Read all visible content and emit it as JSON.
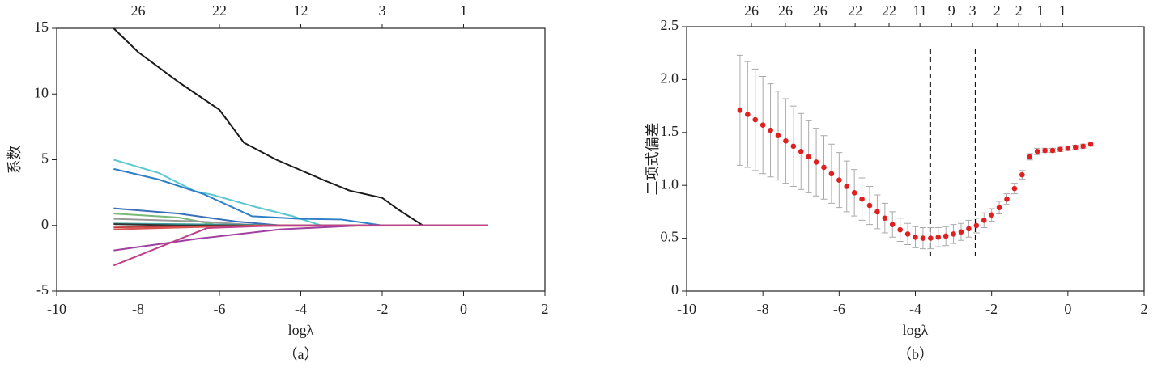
{
  "chart_data": [
    {
      "type": "line",
      "xlabel": "logλ",
      "ylabel": "系数",
      "caption": "（a）",
      "xlim": [
        -10,
        2
      ],
      "ylim": [
        -5,
        15
      ],
      "xticks": [
        -10,
        -8,
        -6,
        -4,
        -2,
        0,
        2
      ],
      "yticks": [
        -5,
        0,
        5,
        10,
        15
      ],
      "x2ticks": [
        {
          "value": -8,
          "label": "26"
        },
        {
          "value": -6,
          "label": "22"
        },
        {
          "value": -4,
          "label": "12"
        },
        {
          "value": -2,
          "label": "3"
        },
        {
          "value": 0,
          "label": "1"
        }
      ],
      "series": [
        {
          "color": "#1a1a1a",
          "x": [
            -8.6,
            -8,
            -7,
            -6,
            -5.4,
            -4.6,
            -4,
            -3.4,
            -2.8,
            -2,
            -1.6,
            -1.0,
            0.6
          ],
          "values": [
            15,
            13.2,
            10.9,
            8.8,
            6.3,
            5.0,
            4.2,
            3.4,
            2.65,
            2.1,
            1.2,
            0,
            0
          ]
        },
        {
          "color": "#5bc8d0",
          "x": [
            -8.6,
            -7.5,
            -6.6,
            -6.2,
            -5.1,
            -4.2,
            -3.5,
            0.6
          ],
          "values": [
            5.0,
            4.0,
            2.6,
            2.35,
            1.4,
            0.7,
            0,
            0
          ]
        },
        {
          "color": "#2f7fc8",
          "x": [
            -8.6,
            -7.5,
            -6.4,
            -5.2,
            -4,
            -3,
            -2,
            0.6
          ],
          "values": [
            4.3,
            3.5,
            2.4,
            0.7,
            0.5,
            0.45,
            0,
            0
          ]
        },
        {
          "color": "#3a6fb8",
          "x": [
            -8.6,
            -7,
            -5.6,
            -4.5,
            0.6
          ],
          "values": [
            1.3,
            0.9,
            0.3,
            0,
            0
          ]
        },
        {
          "color": "#7ab87a",
          "x": [
            -8.6,
            -7,
            -6,
            0.6
          ],
          "values": [
            0.9,
            0.6,
            0,
            0
          ]
        },
        {
          "color": "#999999",
          "x": [
            -8.6,
            -6.5,
            -5,
            0.6
          ],
          "values": [
            0.5,
            0.3,
            0,
            0
          ]
        },
        {
          "color": "#40a0a0",
          "x": [
            -8.6,
            -4,
            0.6
          ],
          "values": [
            0.15,
            0,
            0
          ]
        },
        {
          "color": "#333333",
          "x": [
            -8.6,
            -7,
            0.6
          ],
          "values": [
            0.1,
            0,
            0
          ]
        },
        {
          "color": "#c04040",
          "x": [
            -8.6,
            -6,
            0.6
          ],
          "values": [
            -0.15,
            -0.05,
            0
          ]
        },
        {
          "color": "#d9534f",
          "x": [
            -8.6,
            -5,
            0.6
          ],
          "values": [
            -0.3,
            0,
            0
          ]
        },
        {
          "color": "#a040a0",
          "x": [
            -8.6,
            -6.5,
            -4.5,
            -2.5,
            0.6
          ],
          "values": [
            -1.9,
            -1.0,
            -0.3,
            0,
            0
          ]
        },
        {
          "color": "#c0408a",
          "x": [
            -8.6,
            -6.3,
            -4.5,
            0.6
          ],
          "values": [
            -3.05,
            -0.2,
            0,
            0
          ]
        }
      ]
    },
    {
      "type": "errorbar",
      "xlabel": "logλ",
      "ylabel": "二项式偏差",
      "caption": "（b）",
      "xlim": [
        -10,
        2
      ],
      "ylim": [
        0,
        2.5
      ],
      "xticks": [
        -10,
        -8,
        -6,
        -4,
        -2,
        0,
        2
      ],
      "yticks": [
        0,
        0.5,
        {
          "value": 1,
          "label": "1.0"
        },
        1.5,
        {
          "value": 2,
          "label": "2.0"
        },
        2.5
      ],
      "x2ticks": [
        {
          "value": -8.3,
          "label": "26"
        },
        {
          "value": -7.41,
          "label": "26"
        },
        {
          "value": -6.5,
          "label": "26"
        },
        {
          "value": -5.58,
          "label": "22"
        },
        {
          "value": -4.69,
          "label": "22"
        },
        {
          "value": -3.88,
          "label": "11"
        },
        {
          "value": -3.05,
          "label": "9"
        },
        {
          "value": -2.5,
          "label": "3"
        },
        {
          "value": -1.86,
          "label": "2"
        },
        {
          "value": -1.29,
          "label": "2"
        },
        {
          "value": -0.72,
          "label": "1"
        },
        {
          "value": -0.14,
          "label": "1"
        }
      ],
      "vlines": [
        -3.61,
        -2.42
      ],
      "color": "#e02020",
      "error_color": "#aaaaaa",
      "x": [
        -8.6,
        -8.4,
        -8.2,
        -8.0,
        -7.8,
        -7.6,
        -7.4,
        -7.2,
        -7.0,
        -6.8,
        -6.6,
        -6.4,
        -6.2,
        -6.0,
        -5.8,
        -5.6,
        -5.4,
        -5.2,
        -5.0,
        -4.8,
        -4.6,
        -4.4,
        -4.2,
        -4.0,
        -3.8,
        -3.6,
        -3.4,
        -3.2,
        -3.0,
        -2.8,
        -2.6,
        -2.4,
        -2.2,
        -2.0,
        -1.8,
        -1.6,
        -1.4,
        -1.2,
        -1.0,
        -0.8,
        -0.6,
        -0.4,
        -0.2,
        0.0,
        0.2,
        0.4,
        0.6
      ],
      "values": [
        1.71,
        1.67,
        1.62,
        1.57,
        1.52,
        1.47,
        1.42,
        1.37,
        1.32,
        1.27,
        1.22,
        1.17,
        1.11,
        1.05,
        0.99,
        0.93,
        0.87,
        0.81,
        0.75,
        0.69,
        0.63,
        0.58,
        0.54,
        0.51,
        0.5,
        0.5,
        0.51,
        0.52,
        0.54,
        0.56,
        0.59,
        0.62,
        0.67,
        0.72,
        0.79,
        0.87,
        0.97,
        1.1,
        1.27,
        1.32,
        1.33,
        1.33,
        1.34,
        1.35,
        1.36,
        1.37,
        1.39
      ],
      "errors": [
        0.52,
        0.5,
        0.48,
        0.46,
        0.44,
        0.42,
        0.4,
        0.38,
        0.36,
        0.34,
        0.32,
        0.3,
        0.28,
        0.26,
        0.24,
        0.22,
        0.2,
        0.18,
        0.16,
        0.14,
        0.12,
        0.11,
        0.1,
        0.1,
        0.1,
        0.1,
        0.09,
        0.09,
        0.09,
        0.08,
        0.08,
        0.07,
        0.07,
        0.06,
        0.06,
        0.05,
        0.05,
        0.04,
        0.03,
        0.03,
        0.02,
        0.02,
        0.02,
        0.02,
        0.02,
        0.02,
        0.02
      ]
    }
  ]
}
